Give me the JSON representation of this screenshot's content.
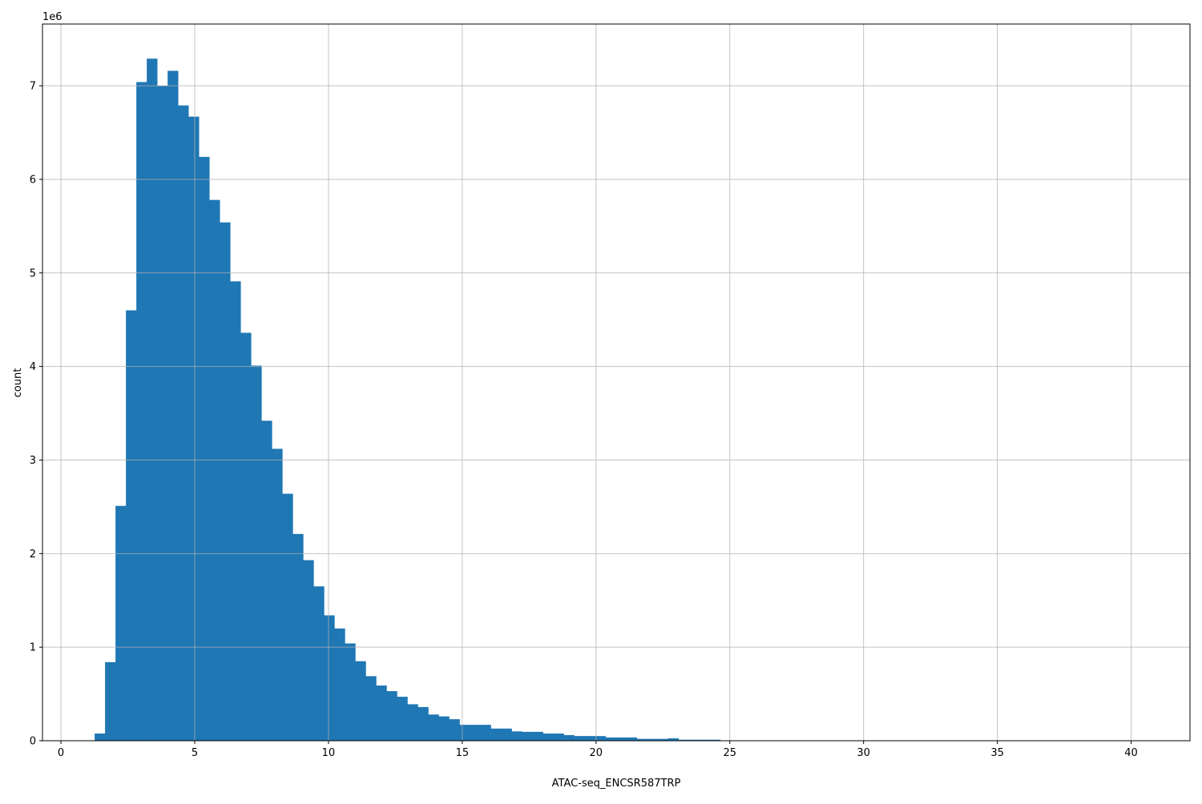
{
  "chart_data": {
    "type": "bar",
    "subtype": "histogram",
    "xlabel": "ATAC-seq_ENCSR587TRP",
    "ylabel": "count",
    "y_offset_label": "1e6",
    "y_multiplier": 1000000,
    "bin_start": 1.26,
    "bin_width": 0.3897,
    "bin_count": 100,
    "values": [
      0.077,
      0.84,
      2.51,
      4.6,
      7.04,
      7.29,
      7.0,
      7.16,
      6.79,
      6.67,
      6.24,
      5.78,
      5.54,
      4.91,
      4.36,
      4.01,
      3.42,
      3.12,
      2.64,
      2.21,
      1.93,
      1.65,
      1.34,
      1.2,
      1.04,
      0.85,
      0.69,
      0.59,
      0.53,
      0.47,
      0.39,
      0.36,
      0.28,
      0.26,
      0.23,
      0.17,
      0.17,
      0.17,
      0.13,
      0.13,
      0.1,
      0.095,
      0.095,
      0.077,
      0.077,
      0.06,
      0.05,
      0.05,
      0.05,
      0.035,
      0.035,
      0.035,
      0.02,
      0.02,
      0.02,
      0.026,
      0.011,
      0.011,
      0.011,
      0.011,
      0.003,
      0.002,
      0.002,
      0.001,
      0.001,
      0,
      0,
      0,
      0,
      0,
      0,
      0,
      0,
      0,
      0,
      0,
      0,
      0,
      0,
      0,
      0,
      0,
      0,
      0,
      0,
      0,
      0,
      0,
      0,
      0,
      0,
      0,
      0,
      0,
      0,
      0,
      0,
      0,
      0,
      0
    ],
    "xlim": [
      -0.69,
      42.2
    ],
    "ylim": [
      0,
      7.66
    ],
    "x_ticks": [
      "0",
      "5",
      "10",
      "15",
      "20",
      "25",
      "30",
      "35",
      "40"
    ],
    "y_ticks": [
      "0",
      "1",
      "2",
      "3",
      "4",
      "5",
      "6",
      "7"
    ],
    "grid": true,
    "bar_color": "#1f77b4",
    "grid_color": "#b0b0b0"
  }
}
